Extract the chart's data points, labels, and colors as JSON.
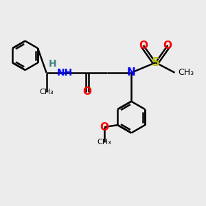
{
  "bg_color": "#ececec",
  "bond_color": "#000000",
  "bond_width": 1.8,
  "N_color": "#0000ff",
  "O_color": "#ff0000",
  "S_color": "#b8b800",
  "H_color": "#408080",
  "C_color": "#000000",
  "figsize": [
    3.0,
    3.0
  ],
  "dpi": 100,
  "xlim": [
    0,
    10
  ],
  "ylim": [
    0,
    10
  ]
}
